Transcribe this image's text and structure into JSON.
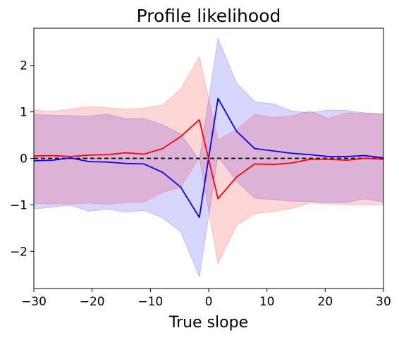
{
  "chart_data": {
    "type": "line",
    "title": "Profile likelihood",
    "xlabel": "True slope",
    "ylabel": "",
    "xlim": [
      -30,
      30
    ],
    "ylim": [
      -2.8,
      2.8
    ],
    "xticks": [
      -30,
      -20,
      -10,
      0,
      10,
      20,
      30
    ],
    "xtick_labels": [
      "−30",
      "−20",
      "−10",
      "0",
      "10",
      "20",
      "30"
    ],
    "yticks": [
      -2,
      -1,
      0,
      1,
      2
    ],
    "ytick_labels": [
      "−2",
      "−1",
      "0",
      "1",
      "2"
    ],
    "grid": false,
    "legend": "none",
    "x": [
      -30,
      -26.8,
      -23.7,
      -20.5,
      -17.4,
      -14.2,
      -11.1,
      -7.9,
      -4.8,
      -1.6,
      1.6,
      4.8,
      7.9,
      11.1,
      14.2,
      17.4,
      20.5,
      23.7,
      26.8,
      30
    ],
    "reference_line": {
      "y": 0,
      "style": "dashed",
      "color": "#000000"
    },
    "series": [
      {
        "color": "#0000ff",
        "fill_color": "#0000ff",
        "values": [
          -0.05,
          -0.04,
          0.01,
          -0.07,
          -0.08,
          -0.11,
          -0.12,
          -0.3,
          -0.62,
          -1.27,
          1.29,
          0.58,
          0.21,
          0.16,
          0.11,
          0.08,
          0.04,
          0.04,
          0.06,
          0.01
        ],
        "upper": [
          0.94,
          0.93,
          0.92,
          0.91,
          0.95,
          0.85,
          0.86,
          0.72,
          0.53,
          -0.04,
          2.58,
          1.62,
          1.22,
          1.17,
          1.02,
          0.98,
          1.04,
          1.03,
          0.98,
          0.96
        ],
        "lower": [
          -1.09,
          -1.05,
          -1.01,
          -1.14,
          -1.09,
          -1.16,
          -1.12,
          -1.28,
          -1.58,
          -2.55,
          0.04,
          -0.49,
          -0.86,
          -0.89,
          -0.92,
          -0.93,
          -0.95,
          -0.95,
          -0.87,
          -0.94
        ]
      },
      {
        "color": "#ff0000",
        "fill_color": "#ff0000",
        "values": [
          0.05,
          0.06,
          0.04,
          0.07,
          0.08,
          0.12,
          0.09,
          0.21,
          0.47,
          0.83,
          -0.87,
          -0.4,
          -0.12,
          -0.13,
          -0.1,
          -0.02,
          -0.02,
          -0.04,
          0.0,
          -0.02
        ],
        "upper": [
          1.04,
          1.01,
          1.06,
          1.12,
          1.09,
          1.06,
          1.08,
          1.15,
          1.49,
          2.19,
          0.4,
          0.62,
          0.95,
          0.88,
          0.91,
          1.02,
          0.86,
          0.98,
          0.97,
          0.95
        ],
        "lower": [
          -0.97,
          -0.98,
          -0.98,
          -0.96,
          -0.99,
          -0.95,
          -0.94,
          -0.73,
          -0.62,
          0.02,
          -2.27,
          -1.44,
          -1.19,
          -1.14,
          -1.08,
          -0.96,
          -0.98,
          -1.0,
          -1.0,
          -1.0
        ]
      }
    ]
  }
}
